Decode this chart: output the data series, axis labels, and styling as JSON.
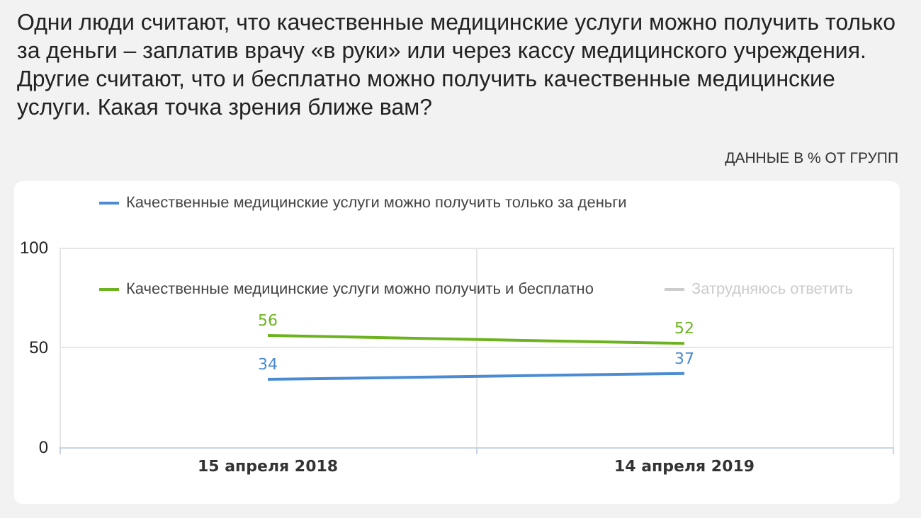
{
  "chart_data": {
    "type": "line",
    "title": "Одни люди считают, что качественные медицинские услуги можно получить только за деньги – заплатив врачу «в руки» или через кассу медицинского учреждения. Другие считают, что и бесплатно можно получить качественные медицинские услуги. Какая точка зрения ближе вам?",
    "subtitle": "ДАННЫЕ В % ОТ ГРУПП",
    "categories": [
      "15 апреля 2018",
      "14 апреля 2019"
    ],
    "series": [
      {
        "name": "Качественные медицинские услуги можно получить только за деньги",
        "color": "#4a8bd3",
        "values": [
          34,
          37
        ]
      },
      {
        "name": "Качественные медицинские услуги можно получить и бесплатно",
        "color": "#6db31f",
        "values": [
          56,
          52
        ]
      },
      {
        "name": "Затрудняюсь ответить",
        "color": "#cccccc",
        "values": [
          null,
          null
        ]
      }
    ],
    "ylim": [
      0,
      100
    ],
    "yticks": [
      0,
      50,
      100
    ],
    "grid": true,
    "legend": "top left",
    "data_labels": true,
    "marker": "none",
    "line_style": "solid"
  }
}
